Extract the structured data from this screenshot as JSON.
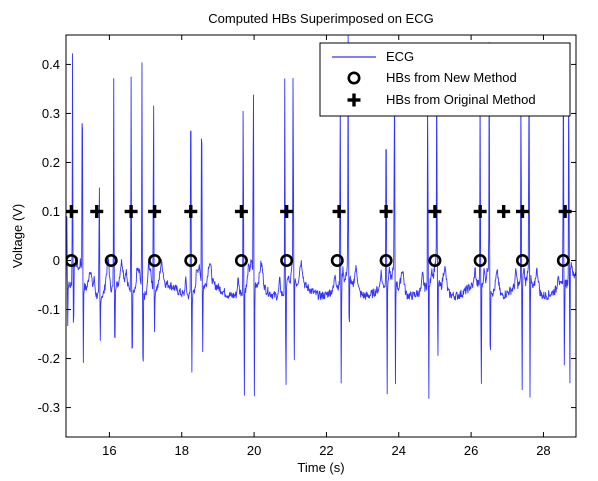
{
  "chart_data": {
    "type": "line",
    "title": "Computed HBs Superimposed on ECG",
    "xlabel": "Time (s)",
    "ylabel": "Voltage (V)",
    "xlim": [
      14.8,
      28.9
    ],
    "ylim": [
      -0.36,
      0.46
    ],
    "xticks": [
      16,
      18,
      20,
      22,
      24,
      26,
      28
    ],
    "yticks": [
      0.4,
      0.3,
      0.2,
      0.1,
      0,
      -0.1,
      -0.2,
      -0.3
    ],
    "ytick_labels": [
      "0.4",
      "0.3",
      "0.2",
      "0.1",
      "0",
      "-0.1",
      "-0.2",
      "-0.3"
    ],
    "grid": false,
    "legend_position": "top-right",
    "series": [
      {
        "name": "ECG",
        "kind": "line",
        "color": "#3333ff",
        "beats": [
          14.82,
          14.98,
          15.25,
          15.72,
          16.12,
          16.6,
          16.9,
          17.22,
          18.25,
          18.55,
          19.7,
          19.98,
          20.85,
          21.08,
          22.38,
          22.6,
          23.65,
          23.88,
          24.8,
          25.05,
          26.25,
          26.5,
          27.38,
          27.6,
          28.55,
          28.7
        ],
        "peaks": [
          0.1,
          0.4,
          0.42,
          0.2,
          0.37,
          0.38,
          0.4,
          0.4,
          0.46,
          0.4,
          0.38,
          0.4,
          0.39,
          0.4,
          0.4,
          0.4,
          0.38,
          0.39,
          0.4,
          0.37,
          0.36,
          0.41,
          0.4,
          0.44,
          0.42,
          0.41
        ],
        "troughs": [
          -0.17,
          -0.24,
          -0.22,
          -0.16,
          -0.23,
          -0.26,
          -0.3,
          -0.16,
          -0.21,
          -0.19,
          -0.29,
          -0.31,
          -0.3,
          -0.26,
          -0.27,
          -0.25,
          -0.28,
          -0.3,
          -0.3,
          -0.27,
          -0.31,
          -0.28,
          -0.3,
          -0.34,
          -0.29,
          -0.3
        ],
        "baseline": -0.06
      },
      {
        "name": "HBs from New Method",
        "kind": "marker",
        "marker": "circle",
        "y": 0,
        "x": [
          14.95,
          16.05,
          17.25,
          18.25,
          19.65,
          20.9,
          22.3,
          23.65,
          25.0,
          26.25,
          27.42,
          28.55
        ]
      },
      {
        "name": "HBs from Original Method",
        "kind": "marker",
        "marker": "cross",
        "y": 0.1,
        "x": [
          14.95,
          15.65,
          16.6,
          17.25,
          18.25,
          19.65,
          20.9,
          22.35,
          23.65,
          25.0,
          26.25,
          26.9,
          27.42,
          28.6
        ]
      }
    ]
  }
}
